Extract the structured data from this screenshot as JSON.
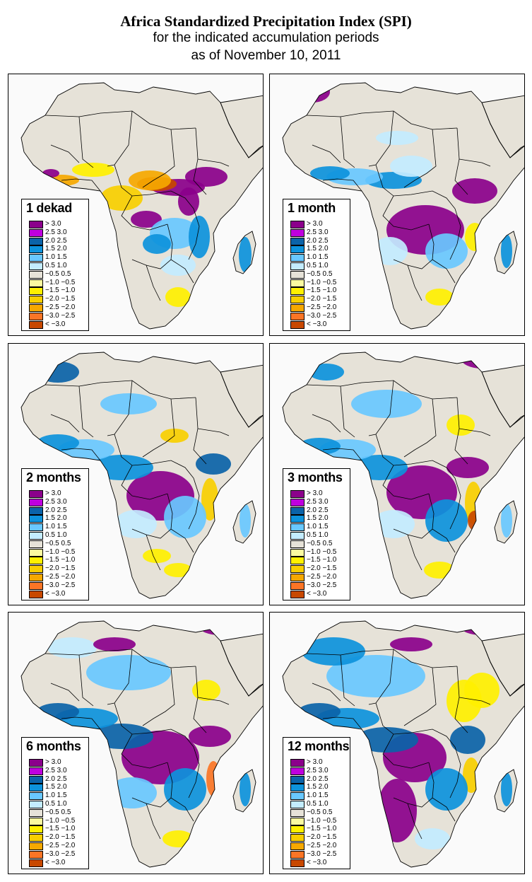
{
  "header": {
    "title": "Africa Standardized Precipitation Index (SPI)",
    "subtitle_line1": "for the indicated accumulation periods",
    "subtitle_line2": "as of November 10, 2011"
  },
  "legend": {
    "categories": [
      {
        "label": "> 3.0",
        "color": "#8b008b"
      },
      {
        "label": "2.5  3.0",
        "color": "#bf00de"
      },
      {
        "label": "2.0  2.5",
        "color": "#0b63a8"
      },
      {
        "label": "1.5  2.0",
        "color": "#0d93dc"
      },
      {
        "label": "1.0  1.5",
        "color": "#69c8ff"
      },
      {
        "label": "0.5  1.0",
        "color": "#c3ecff"
      },
      {
        "label": "−0.5  0.5",
        "color": "#e6e2d8"
      },
      {
        "label": "−1.0 −0.5",
        "color": "#fafaa0"
      },
      {
        "label": "−1.5 −1.0",
        "color": "#fff000"
      },
      {
        "label": "−2.0 −1.5",
        "color": "#f8cf00"
      },
      {
        "label": "−2.5 −2.0",
        "color": "#f6a800"
      },
      {
        "label": "−3.0 −2.5",
        "color": "#fb7526"
      },
      {
        "label": "< −3.0",
        "color": "#c84800"
      }
    ]
  },
  "colors": {
    "ocean": "#fafafa",
    "land_normal": "#e6e2d8",
    "border": "#000000"
  },
  "panels": [
    {
      "label": "1 dekad",
      "anomaly": "dekad"
    },
    {
      "label": "1 month",
      "anomaly": "month1"
    },
    {
      "label": "2 months",
      "anomaly": "month2"
    },
    {
      "label": "3 months",
      "anomaly": "month3"
    },
    {
      "label": "6 months",
      "anomaly": "month6"
    },
    {
      "label": "12 months",
      "anomaly": "month12"
    }
  ]
}
